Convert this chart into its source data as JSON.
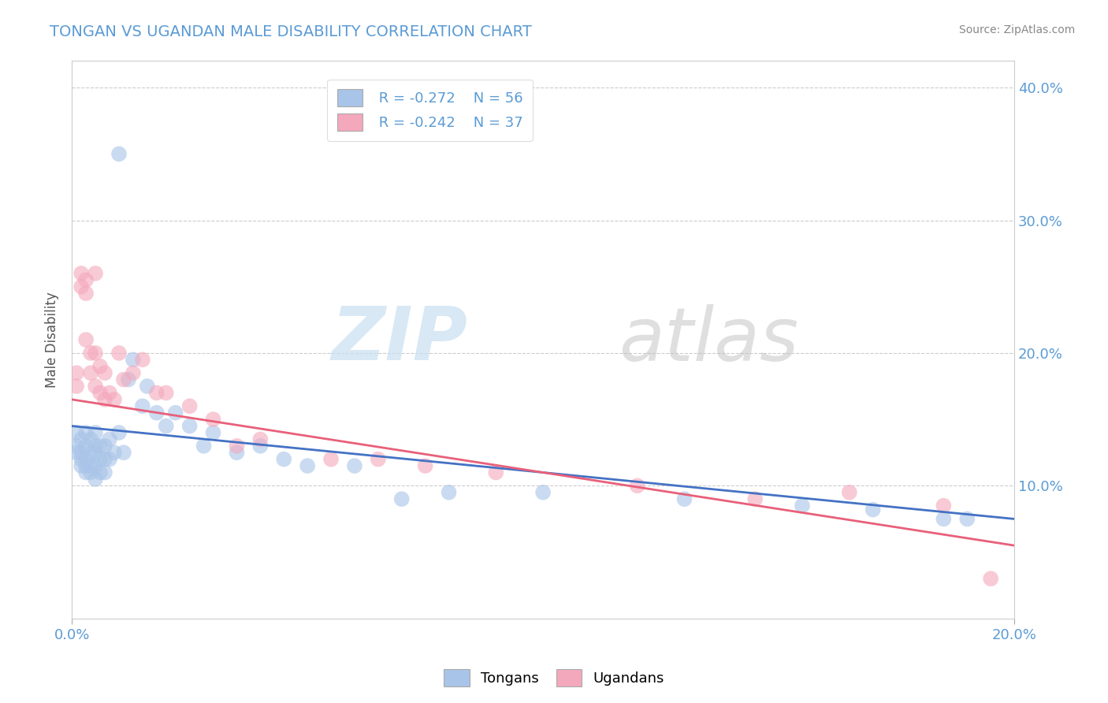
{
  "title": "TONGAN VS UGANDAN MALE DISABILITY CORRELATION CHART",
  "source": "Source: ZipAtlas.com",
  "ylabel": "Male Disability",
  "xlim": [
    0.0,
    0.2
  ],
  "ylim": [
    0.0,
    0.42
  ],
  "ytick_vals": [
    0.1,
    0.2,
    0.3,
    0.4
  ],
  "ytick_labels": [
    "10.0%",
    "20.0%",
    "30.0%",
    "40.0%"
  ],
  "legend_r_tongan": "R = -0.272",
  "legend_n_tongan": "N = 56",
  "legend_r_ugandan": "R = -0.242",
  "legend_n_ugandan": "N = 37",
  "tongan_color": "#a8c4e8",
  "ugandan_color": "#f4a8bc",
  "tongan_line_color": "#4472c4",
  "ugandan_line_color": "#e8607a",
  "watermark_zip": "ZIP",
  "watermark_atlas": "atlas",
  "tongan_x": [
    0.001,
    0.001,
    0.001,
    0.002,
    0.002,
    0.002,
    0.002,
    0.003,
    0.003,
    0.003,
    0.003,
    0.003,
    0.004,
    0.004,
    0.004,
    0.004,
    0.005,
    0.005,
    0.005,
    0.005,
    0.005,
    0.006,
    0.006,
    0.006,
    0.007,
    0.007,
    0.007,
    0.008,
    0.008,
    0.009,
    0.01,
    0.01,
    0.011,
    0.012,
    0.013,
    0.015,
    0.016,
    0.018,
    0.02,
    0.022,
    0.025,
    0.028,
    0.03,
    0.035,
    0.04,
    0.045,
    0.05,
    0.06,
    0.07,
    0.08,
    0.1,
    0.13,
    0.155,
    0.17,
    0.185,
    0.19
  ],
  "tongan_y": [
    0.14,
    0.13,
    0.125,
    0.135,
    0.125,
    0.12,
    0.115,
    0.14,
    0.13,
    0.12,
    0.115,
    0.11,
    0.135,
    0.125,
    0.115,
    0.11,
    0.14,
    0.13,
    0.125,
    0.115,
    0.105,
    0.13,
    0.12,
    0.11,
    0.13,
    0.12,
    0.11,
    0.135,
    0.12,
    0.125,
    0.35,
    0.14,
    0.125,
    0.18,
    0.195,
    0.16,
    0.175,
    0.155,
    0.145,
    0.155,
    0.145,
    0.13,
    0.14,
    0.125,
    0.13,
    0.12,
    0.115,
    0.115,
    0.09,
    0.095,
    0.095,
    0.09,
    0.085,
    0.082,
    0.075,
    0.075
  ],
  "ugandan_x": [
    0.001,
    0.001,
    0.002,
    0.002,
    0.003,
    0.003,
    0.003,
    0.004,
    0.004,
    0.005,
    0.005,
    0.005,
    0.006,
    0.006,
    0.007,
    0.007,
    0.008,
    0.009,
    0.01,
    0.011,
    0.013,
    0.015,
    0.018,
    0.02,
    0.025,
    0.03,
    0.035,
    0.04,
    0.055,
    0.065,
    0.075,
    0.09,
    0.12,
    0.145,
    0.165,
    0.185,
    0.195
  ],
  "ugandan_y": [
    0.185,
    0.175,
    0.26,
    0.25,
    0.255,
    0.245,
    0.21,
    0.2,
    0.185,
    0.26,
    0.2,
    0.175,
    0.19,
    0.17,
    0.185,
    0.165,
    0.17,
    0.165,
    0.2,
    0.18,
    0.185,
    0.195,
    0.17,
    0.17,
    0.16,
    0.15,
    0.13,
    0.135,
    0.12,
    0.12,
    0.115,
    0.11,
    0.1,
    0.09,
    0.095,
    0.085,
    0.03
  ]
}
